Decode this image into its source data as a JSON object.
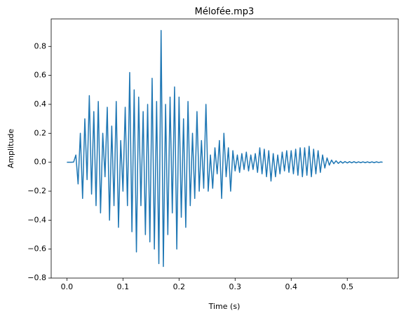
{
  "chart_data": {
    "type": "line",
    "title": "Mélofée.mp3",
    "xlabel": "Time (s)",
    "ylabel": "Amplitude",
    "x": [
      0,
      0.004,
      0.008,
      0.012,
      0.016,
      0.02,
      0.024,
      0.028,
      0.032,
      0.036,
      0.04,
      0.044,
      0.048,
      0.052,
      0.056,
      0.06,
      0.064,
      0.068,
      0.072,
      0.076,
      0.08,
      0.084,
      0.088,
      0.092,
      0.096,
      0.1,
      0.104,
      0.108,
      0.112,
      0.116,
      0.12,
      0.124,
      0.128,
      0.132,
      0.136,
      0.14,
      0.144,
      0.148,
      0.152,
      0.156,
      0.16,
      0.164,
      0.168,
      0.172,
      0.176,
      0.18,
      0.184,
      0.188,
      0.192,
      0.196,
      0.2,
      0.204,
      0.208,
      0.212,
      0.216,
      0.22,
      0.224,
      0.228,
      0.232,
      0.236,
      0.24,
      0.244,
      0.248,
      0.252,
      0.256,
      0.26,
      0.264,
      0.268,
      0.272,
      0.276,
      0.28,
      0.284,
      0.288,
      0.292,
      0.296,
      0.3,
      0.304,
      0.308,
      0.312,
      0.316,
      0.32,
      0.324,
      0.328,
      0.332,
      0.336,
      0.34,
      0.344,
      0.348,
      0.352,
      0.356,
      0.36,
      0.364,
      0.368,
      0.372,
      0.376,
      0.38,
      0.384,
      0.388,
      0.392,
      0.396,
      0.4,
      0.404,
      0.408,
      0.412,
      0.416,
      0.42,
      0.424,
      0.428,
      0.432,
      0.436,
      0.44,
      0.444,
      0.448,
      0.452,
      0.456,
      0.46,
      0.464,
      0.468,
      0.472,
      0.476,
      0.48,
      0.484,
      0.488,
      0.492,
      0.496,
      0.5,
      0.504,
      0.508,
      0.512,
      0.516,
      0.52,
      0.524,
      0.528,
      0.532,
      0.536,
      0.54,
      0.544,
      0.548,
      0.552,
      0.556,
      0.56,
      0.563
    ],
    "series": [
      {
        "color": "#1f77b4",
        "values": [
          0,
          0,
          0,
          0.001,
          0.05,
          -0.15,
          0.2,
          -0.25,
          0.3,
          -0.12,
          0.46,
          -0.22,
          0.35,
          -0.3,
          0.42,
          -0.35,
          0.2,
          -0.1,
          0.38,
          -0.4,
          0.25,
          -0.3,
          0.42,
          -0.45,
          0.15,
          -0.2,
          0.38,
          -0.3,
          0.62,
          -0.48,
          0.5,
          -0.62,
          0.45,
          -0.3,
          0.35,
          -0.5,
          0.4,
          -0.55,
          0.58,
          -0.6,
          0.42,
          -0.7,
          0.91,
          -0.72,
          0.4,
          -0.5,
          0.45,
          -0.35,
          0.52,
          -0.6,
          0.45,
          -0.38,
          0.3,
          -0.45,
          0.42,
          -0.3,
          0.2,
          -0.25,
          0.35,
          -0.2,
          0.15,
          -0.18,
          0.4,
          -0.2,
          0.05,
          -0.18,
          0.1,
          -0.08,
          0.15,
          -0.25,
          0.2,
          -0.1,
          0.1,
          -0.2,
          0.08,
          -0.06,
          0.05,
          -0.07,
          0.06,
          -0.05,
          0.07,
          -0.06,
          0.05,
          -0.05,
          0.06,
          -0.07,
          0.1,
          -0.08,
          0.09,
          -0.1,
          0.08,
          -0.13,
          0.06,
          -0.1,
          0.05,
          -0.08,
          0.07,
          -0.06,
          0.08,
          -0.07,
          0.08,
          -0.08,
          0.09,
          -0.09,
          0.1,
          -0.1,
          0.1,
          -0.09,
          0.11,
          -0.1,
          0.09,
          -0.08,
          0.08,
          -0.07,
          0.05,
          -0.04,
          0.03,
          -0.02,
          0.015,
          -0.01,
          0.01,
          -0.008,
          0.006,
          -0.006,
          0.005,
          -0.005,
          0.004,
          -0.004,
          0.004,
          -0.004,
          0.003,
          -0.003,
          0.003,
          -0.003,
          0.003,
          -0.003,
          0.003,
          -0.003,
          0.003,
          -0.002,
          0.002,
          0
        ]
      }
    ],
    "xlim": [
      -0.028,
      0.591
    ],
    "ylim": [
      -0.8,
      0.99
    ],
    "xticks": [
      {
        "value": 0,
        "label": "0.0"
      },
      0.1,
      0.2,
      0.3,
      0.4,
      0.5
    ],
    "yticks": [
      {
        "value": -0.8,
        "label": "−0.8"
      },
      {
        "value": -0.6,
        "label": "−0.6"
      },
      {
        "value": -0.4,
        "label": "−0.4"
      },
      {
        "value": -0.2,
        "label": "−0.2"
      },
      {
        "value": 0,
        "label": "0.0"
      },
      0.2,
      0.4,
      0.6,
      0.8
    ],
    "grid": false
  }
}
